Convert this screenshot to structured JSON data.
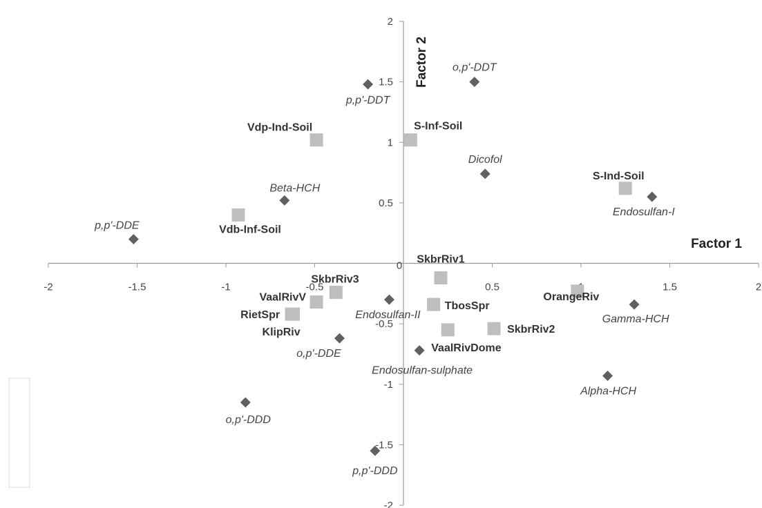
{
  "chart_data": {
    "type": "scatter",
    "xlabel": "Factor 1",
    "ylabel": "Factor 2",
    "xlim": [
      -2,
      2
    ],
    "ylim": [
      -2,
      2
    ],
    "x_ticks": [
      "-2",
      "-1.5",
      "-1",
      "-0.5",
      "0",
      "0.5",
      "1",
      "1.5",
      "2"
    ],
    "y_ticks": [
      "-2",
      "-1.5",
      "-1",
      "-0.5",
      "0.5",
      "1",
      "1.5",
      "2"
    ],
    "grid": false,
    "marker_colors": {
      "pesticide": "#606060",
      "site": "#bebebe"
    },
    "series": [
      {
        "marker": "diamond",
        "points": [
          {
            "label": "o,p'-DDT",
            "x": 0.4,
            "y": 1.5
          },
          {
            "label": "p,p'-DDT",
            "x": -0.2,
            "y": 1.48
          },
          {
            "label": "Dicofol",
            "x": 0.46,
            "y": 0.74
          },
          {
            "label": "Beta-HCH",
            "x": -0.67,
            "y": 0.52
          },
          {
            "label": "p,p'-DDE",
            "x": -1.52,
            "y": 0.2
          },
          {
            "label": "Endosulfan-I",
            "x": 1.4,
            "y": 0.55
          },
          {
            "label": "Endosulfan-II",
            "x": -0.08,
            "y": -0.3
          },
          {
            "label": "Gamma-HCH",
            "x": 1.3,
            "y": -0.34
          },
          {
            "label": "o,p'-DDE",
            "x": -0.36,
            "y": -0.62
          },
          {
            "label": "Endosulfan-sulphate",
            "x": 0.09,
            "y": -0.72
          },
          {
            "label": "Alpha-HCH",
            "x": 1.15,
            "y": -0.93
          },
          {
            "label": "o,p'-DDD",
            "x": -0.89,
            "y": -1.15
          },
          {
            "label": "p,p'-DDD",
            "x": -0.16,
            "y": -1.55
          }
        ]
      },
      {
        "marker": "square",
        "points": [
          {
            "label": "Vdp-Ind-Soil",
            "x": -0.49,
            "y": 1.02
          },
          {
            "label": "S-Inf-Soil",
            "x": 0.04,
            "y": 1.02
          },
          {
            "label": "S-Ind-Soil",
            "x": 1.25,
            "y": 0.62
          },
          {
            "label": "Vdb-Inf-Soil",
            "x": -0.93,
            "y": 0.4
          },
          {
            "label": "SkbrRiv1",
            "x": 0.21,
            "y": -0.12
          },
          {
            "label": "SkbrRiv3",
            "x": -0.38,
            "y": -0.24
          },
          {
            "label": "VaalRivV",
            "x": -0.49,
            "y": -0.32
          },
          {
            "label": "RietSpr",
            "x": -0.63,
            "y": -0.42
          },
          {
            "label": "TbosSpr",
            "x": 0.17,
            "y": -0.34
          },
          {
            "label": "OrangeRiv",
            "x": 0.98,
            "y": -0.23
          },
          {
            "label": "SkbrRiv2",
            "x": 0.51,
            "y": -0.54
          },
          {
            "label": "VaalRivDome",
            "x": 0.25,
            "y": -0.55
          },
          {
            "label": "KlipRiv",
            "x": -0.62,
            "y": -0.42
          }
        ]
      }
    ]
  }
}
